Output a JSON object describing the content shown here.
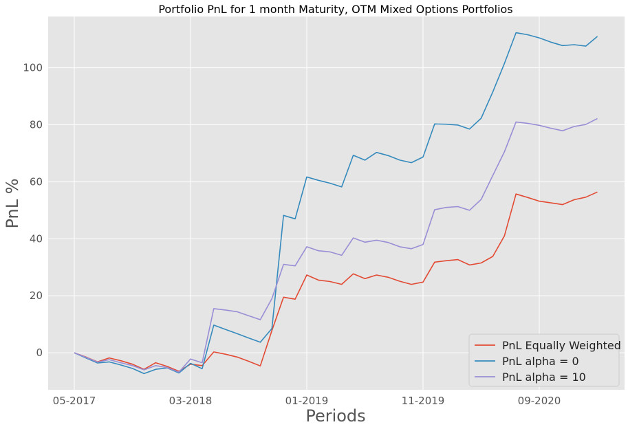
{
  "chart_data": {
    "type": "line",
    "title": "Portfolio PnL for 1 month Maturity, OTM Mixed Options Portfolios",
    "xlabel": "Periods",
    "ylabel": "PnL %",
    "x_range": [
      0,
      47
    ],
    "ylim": [
      -13,
      118
    ],
    "xticks": [
      {
        "index": 0,
        "label": "05-2017"
      },
      {
        "index": 10,
        "label": "03-2018"
      },
      {
        "index": 20,
        "label": "01-2019"
      },
      {
        "index": 30,
        "label": "11-2019"
      },
      {
        "index": 40,
        "label": "09-2020"
      }
    ],
    "yticks": [
      0,
      20,
      40,
      60,
      80,
      100
    ],
    "grid": true,
    "legend_position": "bottom-right",
    "series": [
      {
        "name": "PnL Equally Weighted",
        "color": "#E24A33",
        "values": [
          0,
          -1.5,
          -3.2,
          -1.8,
          -2.8,
          -4.0,
          -5.8,
          -3.5,
          -4.8,
          -6.5,
          -4.0,
          -4.5,
          0.3,
          -0.5,
          -1.5,
          -3.0,
          -4.6,
          7.8,
          19.5,
          18.8,
          27.3,
          25.5,
          25.0,
          24.0,
          27.7,
          26.0,
          27.3,
          26.5,
          25.1,
          24.0,
          24.8,
          31.8,
          32.3,
          32.7,
          30.8,
          31.5,
          33.8,
          41.0,
          55.7,
          54.5,
          53.2,
          52.6,
          52.0,
          53.7,
          54.6,
          56.4
        ]
      },
      {
        "name": "PnL alpha = 0",
        "color": "#348ABD",
        "values": [
          0,
          -1.8,
          -3.6,
          -3.2,
          -4.3,
          -5.5,
          -7.3,
          -5.8,
          -5.3,
          -7.1,
          -3.7,
          -5.6,
          9.7,
          8.2,
          6.7,
          5.2,
          3.7,
          8.5,
          48.2,
          47.0,
          61.7,
          60.5,
          59.5,
          58.2,
          69.3,
          67.6,
          70.3,
          69.2,
          67.6,
          66.7,
          68.7,
          80.3,
          80.2,
          79.9,
          78.5,
          82.3,
          91.5,
          101.5,
          112.3,
          111.6,
          110.5,
          109.0,
          107.8,
          108.1,
          107.6,
          111.0
        ]
      },
      {
        "name": "PnL alpha = 10",
        "color": "#988ED5",
        "values": [
          0,
          -1.6,
          -3.3,
          -2.4,
          -3.5,
          -4.5,
          -6.0,
          -4.5,
          -5.2,
          -6.8,
          -2.2,
          -3.5,
          15.5,
          15.0,
          14.4,
          13.0,
          11.6,
          19.0,
          31.0,
          30.5,
          37.2,
          35.8,
          35.4,
          34.2,
          40.3,
          38.8,
          39.5,
          38.7,
          37.2,
          36.5,
          38.0,
          50.2,
          51.0,
          51.3,
          50.0,
          53.8,
          62.2,
          70.5,
          81.0,
          80.5,
          79.8,
          78.8,
          77.9,
          79.4,
          80.1,
          82.2
        ]
      }
    ]
  }
}
